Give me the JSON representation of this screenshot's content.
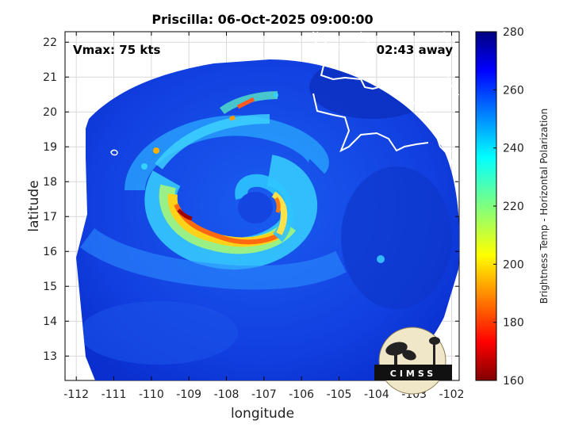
{
  "figure": {
    "title": "Priscilla: 06-Oct-2025 09:00:00",
    "xlabel": "longitude",
    "ylabel": "latitude",
    "vmax_text": "Vmax: 75 kts",
    "time_away_text": "02:43 away",
    "x_ticks": [
      "-112",
      "-111",
      "-110",
      "-109",
      "-108",
      "-107",
      "-106",
      "-105",
      "-104",
      "-103",
      "-102"
    ],
    "y_ticks": [
      "13",
      "14",
      "15",
      "16",
      "17",
      "18",
      "19",
      "20",
      "21",
      "22"
    ],
    "xlim": [
      -112.3,
      -101.8
    ],
    "ylim": [
      12.3,
      22.3
    ],
    "colorbar": {
      "label": "Brightness Temp - Horizontal Polarization",
      "ticks": [
        "280",
        "260",
        "240",
        "220",
        "200",
        "180",
        "160"
      ],
      "range": [
        160,
        280
      ],
      "colormap": "jet"
    },
    "logo_text": "CIMSS",
    "storm_center": {
      "lon": -107.2,
      "lat": 17.2
    }
  }
}
